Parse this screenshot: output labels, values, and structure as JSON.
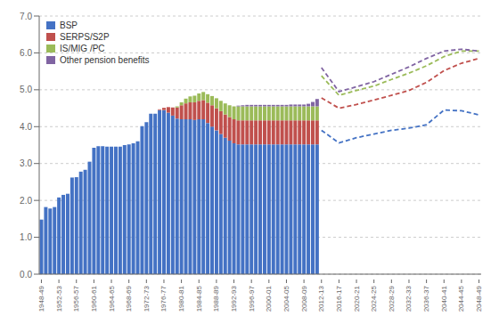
{
  "chart_data": {
    "type": "bar",
    "stacked": true,
    "grid": true,
    "legend": "upper left",
    "categories": [
      "1948-49",
      null,
      null,
      null,
      "1952-53",
      null,
      null,
      null,
      "1956-57",
      null,
      null,
      null,
      "1960-61",
      null,
      null,
      null,
      "1964-65",
      null,
      null,
      null,
      "1968-69",
      null,
      null,
      null,
      "1972-73",
      null,
      null,
      null,
      "1976-77",
      null,
      null,
      null,
      "1980-81",
      null,
      null,
      null,
      "1984-85",
      null,
      null,
      null,
      "1988-89",
      null,
      null,
      null,
      "1992-93",
      null,
      null,
      null,
      "1996-97",
      null,
      null,
      null,
      "2000-01",
      null,
      null,
      null,
      "2004-05",
      null,
      null,
      null,
      "2008-09",
      null,
      null,
      null,
      "2012-13",
      null,
      null,
      null,
      "2016-17",
      null,
      null,
      null,
      "2020-21",
      null,
      null,
      null,
      "2024-25",
      null,
      null,
      null,
      "2028-29",
      null,
      null,
      null,
      "2032-33",
      null,
      null,
      null,
      "2036-37",
      null,
      null,
      null,
      "2040-41",
      null,
      null,
      null,
      "2044-45",
      null,
      null,
      null,
      "2048-49"
    ],
    "ylim": [
      0,
      7
    ],
    "yticks": [
      {
        "value": 0,
        "label": "0.0"
      },
      {
        "value": 1,
        "label": "1.0"
      },
      {
        "value": 2,
        "label": "2.0"
      },
      {
        "value": 3,
        "label": "3.0"
      },
      {
        "value": 4,
        "label": "4.0"
      },
      {
        "value": 5,
        "label": "5.0"
      },
      {
        "value": 6,
        "label": "6.0"
      },
      {
        "value": 7,
        "label": "7.0"
      }
    ],
    "series": [
      {
        "name": "BSP",
        "type": "bar",
        "color": "#4472C4",
        "values": [
          1.48,
          1.82,
          1.78,
          1.82,
          2.08,
          2.15,
          2.18,
          2.62,
          2.63,
          2.78,
          2.83,
          3.05,
          3.43,
          3.47,
          3.47,
          3.46,
          3.46,
          3.46,
          3.46,
          3.5,
          3.52,
          3.55,
          3.6,
          4.01,
          4.12,
          4.35,
          4.35,
          4.45,
          4.45,
          4.38,
          4.3,
          4.22,
          4.2,
          4.2,
          4.2,
          4.18,
          4.2,
          4.2,
          4.1,
          4.0,
          3.9,
          3.8,
          3.7,
          3.62,
          3.55,
          3.52,
          3.52,
          3.52,
          3.52,
          3.52,
          3.52,
          3.52,
          3.52,
          3.52,
          3.52,
          3.52,
          3.52,
          3.52,
          3.52,
          3.52,
          3.52,
          3.52,
          3.52,
          3.52,
          null,
          null,
          null,
          null,
          null,
          null,
          null,
          null,
          null,
          null,
          null,
          null,
          null,
          null,
          null,
          null,
          null,
          null,
          null,
          null,
          null,
          null,
          null,
          null,
          null,
          null,
          null,
          null,
          null,
          null,
          null,
          null,
          null,
          null,
          null,
          null,
          null
        ]
      },
      {
        "name": "SERPS/S2P",
        "type": "bar",
        "color": "#C0504D",
        "values": [
          0,
          0,
          0,
          0,
          0,
          0,
          0,
          0,
          0,
          0,
          0,
          0,
          0,
          0,
          0,
          0,
          0,
          0,
          0,
          0,
          0,
          0,
          0,
          0,
          0,
          0,
          0,
          0.02,
          0.06,
          0.15,
          0.22,
          0.3,
          0.38,
          0.43,
          0.46,
          0.48,
          0.5,
          0.52,
          0.55,
          0.58,
          0.6,
          0.62,
          0.63,
          0.64,
          0.65,
          0.65,
          0.65,
          0.65,
          0.65,
          0.65,
          0.65,
          0.65,
          0.65,
          0.65,
          0.65,
          0.65,
          0.65,
          0.65,
          0.65,
          0.65,
          0.65,
          0.65,
          0.65,
          0.65,
          null,
          null,
          null,
          null,
          null,
          null,
          null,
          null,
          null,
          null,
          null,
          null,
          null,
          null,
          null,
          null,
          null,
          null,
          null,
          null,
          null,
          null,
          null,
          null,
          null,
          null,
          null,
          null,
          null,
          null,
          null,
          null,
          null,
          null,
          null,
          null,
          null
        ]
      },
      {
        "name": "IS/MIG /PC",
        "type": "bar",
        "color": "#9BBB59",
        "values": [
          0,
          0,
          0,
          0,
          0,
          0,
          0,
          0,
          0,
          0,
          0,
          0,
          0,
          0,
          0,
          0,
          0,
          0,
          0,
          0,
          0,
          0,
          0,
          0,
          0,
          0,
          0,
          0,
          0,
          0,
          0,
          0.03,
          0.08,
          0.13,
          0.16,
          0.18,
          0.2,
          0.22,
          0.23,
          0.25,
          0.27,
          0.28,
          0.3,
          0.32,
          0.35,
          0.38,
          0.38,
          0.38,
          0.38,
          0.38,
          0.38,
          0.38,
          0.38,
          0.38,
          0.38,
          0.38,
          0.38,
          0.38,
          0.38,
          0.38,
          0.38,
          0.38,
          0.38,
          0.38,
          null,
          null,
          null,
          null,
          null,
          null,
          null,
          null,
          null,
          null,
          null,
          null,
          null,
          null,
          null,
          null,
          null,
          null,
          null,
          null,
          null,
          null,
          null,
          null,
          null,
          null,
          null,
          null,
          null,
          null,
          null,
          null,
          null,
          null,
          null,
          null,
          null
        ]
      },
      {
        "name": "Other pension benefits",
        "type": "bar",
        "color": "#8064A2",
        "values": [
          0,
          0,
          0,
          0,
          0,
          0,
          0,
          0,
          0,
          0,
          0,
          0,
          0,
          0,
          0,
          0,
          0,
          0,
          0,
          0,
          0,
          0,
          0,
          0,
          0,
          0,
          0,
          0,
          0,
          0,
          0,
          0,
          0,
          0,
          0,
          0,
          0,
          0,
          0,
          0,
          0,
          0,
          0,
          0,
          0,
          0.02,
          0.03,
          0.04,
          0.04,
          0.04,
          0.04,
          0.04,
          0.04,
          0.04,
          0.04,
          0.04,
          0.04,
          0.05,
          0.05,
          0.05,
          0.05,
          0.07,
          0.12,
          0.2,
          null,
          null,
          null,
          null,
          null,
          null,
          null,
          null,
          null,
          null,
          null,
          null,
          null,
          null,
          null,
          null,
          null,
          null,
          null,
          null,
          null,
          null,
          null,
          null,
          null,
          null,
          null,
          null,
          null,
          null,
          null,
          null,
          null,
          null,
          null,
          null,
          null
        ]
      },
      {
        "type": "line",
        "line_style": "dashed",
        "color": "#4472C4",
        "values": [
          null,
          null,
          null,
          null,
          null,
          null,
          null,
          null,
          null,
          null,
          null,
          null,
          null,
          null,
          null,
          null,
          null,
          null,
          null,
          null,
          null,
          null,
          null,
          null,
          null,
          null,
          null,
          null,
          null,
          null,
          null,
          null,
          null,
          null,
          null,
          null,
          null,
          null,
          null,
          null,
          null,
          null,
          null,
          null,
          null,
          null,
          null,
          null,
          null,
          null,
          null,
          null,
          null,
          null,
          null,
          null,
          null,
          null,
          null,
          null,
          null,
          null,
          null,
          null,
          3.9,
          null,
          null,
          null,
          3.56,
          null,
          null,
          null,
          3.7,
          null,
          null,
          null,
          3.8,
          null,
          null,
          null,
          3.9,
          null,
          null,
          null,
          3.96,
          null,
          null,
          null,
          4.05,
          null,
          null,
          null,
          4.45,
          null,
          null,
          null,
          4.43,
          null,
          null,
          null,
          4.32
        ]
      },
      {
        "type": "line",
        "line_style": "dashed",
        "color": "#C0504D",
        "values": [
          null,
          null,
          null,
          null,
          null,
          null,
          null,
          null,
          null,
          null,
          null,
          null,
          null,
          null,
          null,
          null,
          null,
          null,
          null,
          null,
          null,
          null,
          null,
          null,
          null,
          null,
          null,
          null,
          null,
          null,
          null,
          null,
          null,
          null,
          null,
          null,
          null,
          null,
          null,
          null,
          null,
          null,
          null,
          null,
          null,
          null,
          null,
          null,
          null,
          null,
          null,
          null,
          null,
          null,
          null,
          null,
          null,
          null,
          null,
          null,
          null,
          null,
          null,
          null,
          4.78,
          null,
          null,
          null,
          4.5,
          null,
          null,
          null,
          4.6,
          null,
          null,
          null,
          4.72,
          null,
          null,
          null,
          4.85,
          null,
          null,
          null,
          4.98,
          null,
          null,
          null,
          5.2,
          null,
          null,
          null,
          5.52,
          null,
          null,
          null,
          5.72,
          null,
          null,
          null,
          5.85
        ]
      },
      {
        "type": "line",
        "line_style": "dashed",
        "color": "#9BBB59",
        "values": [
          null,
          null,
          null,
          null,
          null,
          null,
          null,
          null,
          null,
          null,
          null,
          null,
          null,
          null,
          null,
          null,
          null,
          null,
          null,
          null,
          null,
          null,
          null,
          null,
          null,
          null,
          null,
          null,
          null,
          null,
          null,
          null,
          null,
          null,
          null,
          null,
          null,
          null,
          null,
          null,
          null,
          null,
          null,
          null,
          null,
          null,
          null,
          null,
          null,
          null,
          null,
          null,
          null,
          null,
          null,
          null,
          null,
          null,
          null,
          null,
          null,
          null,
          null,
          null,
          5.38,
          null,
          null,
          null,
          4.85,
          null,
          null,
          null,
          4.98,
          null,
          null,
          null,
          5.1,
          null,
          null,
          null,
          5.28,
          null,
          null,
          null,
          5.45,
          null,
          null,
          null,
          5.65,
          null,
          null,
          null,
          5.9,
          null,
          null,
          null,
          6.05,
          null,
          null,
          null,
          6.05
        ]
      },
      {
        "type": "line",
        "line_style": "dashed",
        "color": "#8064A2",
        "values": [
          null,
          null,
          null,
          null,
          null,
          null,
          null,
          null,
          null,
          null,
          null,
          null,
          null,
          null,
          null,
          null,
          null,
          null,
          null,
          null,
          null,
          null,
          null,
          null,
          null,
          null,
          null,
          null,
          null,
          null,
          null,
          null,
          null,
          null,
          null,
          null,
          null,
          null,
          null,
          null,
          null,
          null,
          null,
          null,
          null,
          null,
          null,
          null,
          null,
          null,
          null,
          null,
          null,
          null,
          null,
          null,
          null,
          null,
          null,
          null,
          null,
          null,
          null,
          null,
          5.6,
          null,
          null,
          null,
          4.95,
          null,
          null,
          null,
          5.08,
          null,
          null,
          null,
          5.22,
          null,
          null,
          null,
          5.42,
          null,
          null,
          null,
          5.62,
          null,
          null,
          null,
          5.85,
          null,
          null,
          null,
          6.05,
          null,
          null,
          null,
          6.1,
          null,
          null,
          null,
          6.05
        ]
      }
    ]
  }
}
